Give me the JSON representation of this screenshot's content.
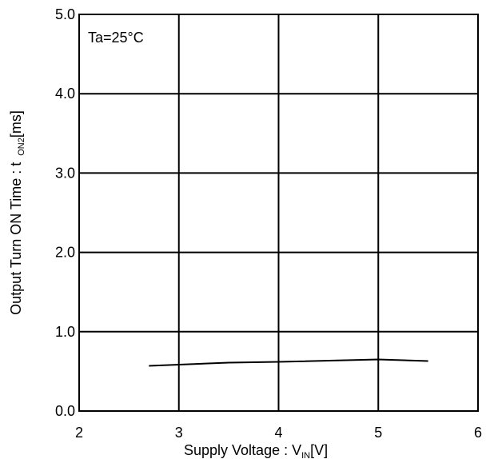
{
  "chart_data": {
    "type": "line",
    "title": "",
    "xlabel_main": "Supply Voltage : V",
    "xlabel_sub": "IN",
    "xlabel_unit": "[V]",
    "ylabel_main": "Output Turn ON Time : t",
    "ylabel_sub": "ON2",
    "ylabel_unit": "[ms]",
    "annotation": "Ta=25°C",
    "xlim": [
      2,
      6
    ],
    "ylim": [
      0,
      5
    ],
    "x_ticks": [
      2,
      3,
      4,
      5,
      6
    ],
    "x_tick_labels": [
      "2",
      "3",
      "4",
      "5",
      "6"
    ],
    "y_ticks": [
      0,
      1,
      2,
      3,
      4,
      5
    ],
    "y_tick_labels": [
      "0.0",
      "1.0",
      "2.0",
      "3.0",
      "4.0",
      "5.0"
    ],
    "grid": true,
    "series": [
      {
        "x": [
          2.7,
          3.5,
          4.0,
          5.0,
          5.5
        ],
        "y": [
          0.57,
          0.61,
          0.62,
          0.65,
          0.63
        ],
        "color": "#000000"
      }
    ]
  }
}
